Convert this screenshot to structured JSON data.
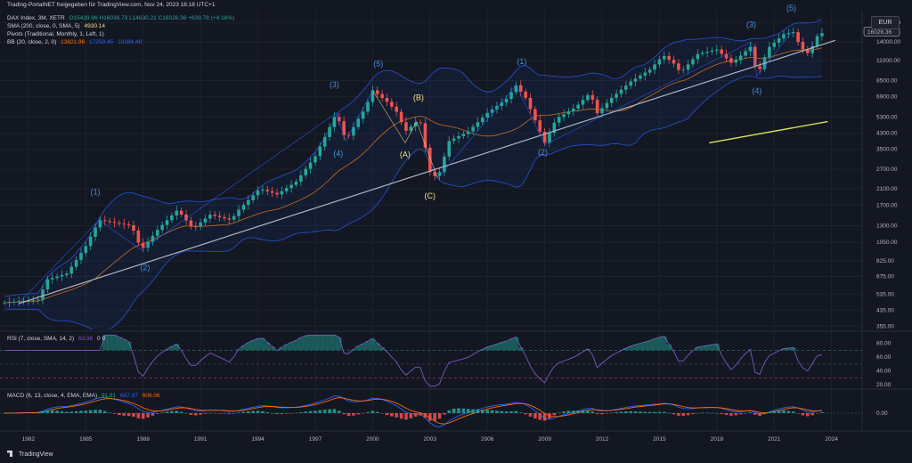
{
  "header": {
    "attribution": "Trading-PortalNET freigegeben für TradingView.com, Nov 24, 2023 16:18 UTC+1"
  },
  "legend": {
    "symbol": "DAX Index, 3M, XETR",
    "ohlc": "O15439.96 H16036.73 L14630.21 C16026.36 +639.78 (+4.16%)",
    "sma_label": "SMA (200, close, 0, SMA, 5)",
    "sma_value": "4930.14",
    "pivots_label": "Pivots (Traditional, Monthly, 1, Left, 1)",
    "bb_label": "BB (20, close, 2, 0)",
    "bb_basis": "13821.96",
    "bb_upper": "17259.45",
    "bb_lower": "10384.48",
    "rsi_label": "RSI (7, close, SMA, 14, 2)",
    "rsi_value": "63.36",
    "rsi_extra": "0 0",
    "macd_label": "MACD (6, 13, close, 4, EMA, EMA)",
    "macd_hist": "91.81",
    "macd_line": "697.87",
    "macd_signal": "606.06"
  },
  "currency": "EUR",
  "footer": {
    "brand": "TradingView"
  },
  "colors": {
    "up": "#26a69a",
    "down": "#ef5350",
    "bb": "#2962ff",
    "sma": "#f57f17",
    "trend": "#b2b5be",
    "rsi": "#7e57c2",
    "macd": "#2962ff",
    "signal": "#ff6d00",
    "projection": "#d4e157"
  },
  "chart_data": {
    "type": "candlestick",
    "x_ticks": [
      "1982",
      "1985",
      "1988",
      "1991",
      "1994",
      "1997",
      "2000",
      "2003",
      "2006",
      "2009",
      "2012",
      "2015",
      "2018",
      "2021",
      "2024"
    ],
    "price_axis": {
      "scale": "log",
      "ticks": [
        "18000.00",
        "14000.00",
        "11000.00",
        "8500.00",
        "6900.00",
        "5300.00",
        "4300.00",
        "3500.00",
        "2700.00",
        "2100.00",
        "1700.00",
        "1300.00",
        "1050.00",
        "825.00",
        "675.00",
        "535.00",
        "435.00",
        "355.00"
      ],
      "last_value": "16026.36",
      "range": [
        340,
        21000
      ]
    },
    "price_path": [
      [
        1980.7,
        480
      ],
      [
        1981.5,
        490
      ],
      [
        1982.5,
        500
      ],
      [
        1983.0,
        650
      ],
      [
        1984.0,
        700
      ],
      [
        1985.0,
        1000
      ],
      [
        1985.7,
        1400
      ],
      [
        1986.5,
        1350
      ],
      [
        1987.4,
        1300
      ],
      [
        1987.9,
        950
      ],
      [
        1988.8,
        1250
      ],
      [
        1989.8,
        1600
      ],
      [
        1990.6,
        1250
      ],
      [
        1991.5,
        1500
      ],
      [
        1992.6,
        1400
      ],
      [
        1993.0,
        1600
      ],
      [
        1994.1,
        2100
      ],
      [
        1995.0,
        1950
      ],
      [
        1996.0,
        2300
      ],
      [
        1997.0,
        3200
      ],
      [
        1997.6,
        4300
      ],
      [
        1998.1,
        5600
      ],
      [
        1998.6,
        3900
      ],
      [
        1999.2,
        5100
      ],
      [
        1999.6,
        5900
      ],
      [
        2000.0,
        7500
      ],
      [
        2000.8,
        6400
      ],
      [
        2001.3,
        5600
      ],
      [
        2001.7,
        4400
      ],
      [
        2002.3,
        5000
      ],
      [
        2002.5,
        4900
      ],
      [
        2003.0,
        2600
      ],
      [
        2003.4,
        2400
      ],
      [
        2004.0,
        3900
      ],
      [
        2005.0,
        4400
      ],
      [
        2006.0,
        5600
      ],
      [
        2007.0,
        6700
      ],
      [
        2007.5,
        8000
      ],
      [
        2008.0,
        6800
      ],
      [
        2009.0,
        3800
      ],
      [
        2009.6,
        5200
      ],
      [
        2010.6,
        6000
      ],
      [
        2011.4,
        7300
      ],
      [
        2011.7,
        5500
      ],
      [
        2012.5,
        6800
      ],
      [
        2013.5,
        8400
      ],
      [
        2014.5,
        9800
      ],
      [
        2015.2,
        11800
      ],
      [
        2015.8,
        10500
      ],
      [
        2016.1,
        9400
      ],
      [
        2017.0,
        12000
      ],
      [
        2018.0,
        12700
      ],
      [
        2018.8,
        10600
      ],
      [
        2019.8,
        13300
      ],
      [
        2020.1,
        9000
      ],
      [
        2020.7,
        13000
      ],
      [
        2021.5,
        15500
      ],
      [
        2022.0,
        15900
      ],
      [
        2022.4,
        13000
      ],
      [
        2022.8,
        12000
      ],
      [
        2023.3,
        15500
      ],
      [
        2023.8,
        16026
      ]
    ],
    "wave_labels": [
      {
        "text": "(1)",
        "x": 1985.5,
        "y": 1950,
        "color": "blue"
      },
      {
        "text": "(2)",
        "x": 1988.1,
        "y": 730,
        "color": "blue"
      },
      {
        "text": "(3)",
        "x": 1998.0,
        "y": 7800,
        "color": "blue"
      },
      {
        "text": "(4)",
        "x": 1998.2,
        "y": 3200,
        "color": "blue"
      },
      {
        "text": "(5)",
        "x": 2000.3,
        "y": 10200,
        "color": "blue"
      },
      {
        "text": "(A)",
        "x": 2001.7,
        "y": 3150,
        "color": "yellow"
      },
      {
        "text": "(B)",
        "x": 2002.4,
        "y": 6600,
        "color": "yellow"
      },
      {
        "text": "(C)",
        "x": 2003.0,
        "y": 1850,
        "color": "yellow"
      },
      {
        "text": "(1)",
        "x": 2007.8,
        "y": 10500,
        "color": "blue"
      },
      {
        "text": "(2)",
        "x": 2008.9,
        "y": 3250,
        "color": "blue"
      },
      {
        "text": "(3)",
        "x": 2019.8,
        "y": 17000,
        "color": "blue"
      },
      {
        "text": "(4)",
        "x": 2020.1,
        "y": 7200,
        "color": "blue"
      },
      {
        "text": "(5)",
        "x": 2021.9,
        "y": 21000,
        "color": "blue"
      }
    ],
    "rsi": {
      "ticks": [
        "80.00",
        "60.00",
        "40.00",
        "20.00"
      ],
      "levels": [
        70,
        50,
        30
      ],
      "range": [
        15,
        95
      ],
      "last": 63.36
    },
    "macd": {
      "ticks": [
        "0.00"
      ],
      "last": {
        "macd": 697.87,
        "signal": 606.06,
        "hist": 91.81
      }
    },
    "trendline": [
      [
        1981.5,
        475
      ],
      [
        2024.2,
        14300
      ]
    ],
    "projection_line": [
      [
        2017.6,
        3800
      ],
      [
        2023.8,
        5000
      ]
    ]
  }
}
